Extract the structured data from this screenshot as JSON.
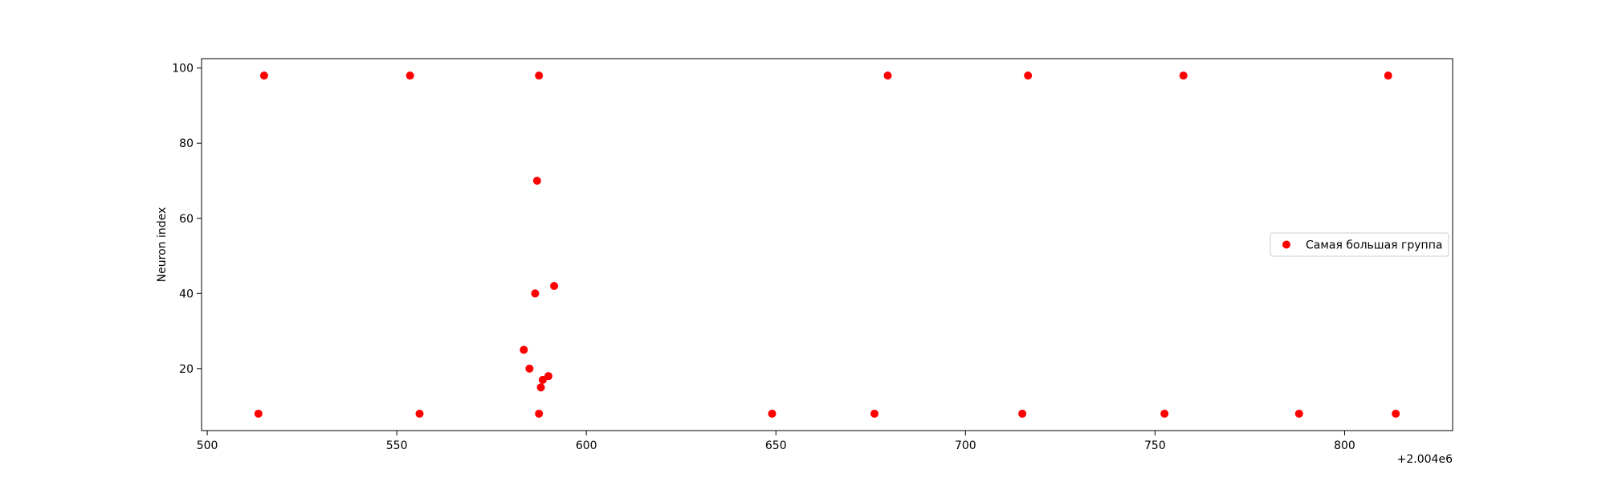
{
  "chart_data": {
    "type": "scatter",
    "title": "",
    "xlabel": "",
    "ylabel": "Neuron index",
    "x_offset_label": "+2.004e6",
    "xlim": [
      2004498.5,
      2004828.5
    ],
    "ylim": [
      3.5,
      102.5
    ],
    "x_ticks": [
      2004500,
      2004550,
      2004600,
      2004650,
      2004700,
      2004750,
      2004800
    ],
    "x_tick_labels": [
      "500",
      "550",
      "600",
      "650",
      "700",
      "750",
      "800"
    ],
    "y_ticks": [
      20,
      40,
      60,
      80,
      100
    ],
    "y_tick_labels": [
      "20",
      "40",
      "60",
      "80",
      "100"
    ],
    "grid": false,
    "legend_position": "center-right",
    "series": [
      {
        "name": "Самая большая группа",
        "color": "#ff0000",
        "points": [
          {
            "x": 2004515,
            "y": 98
          },
          {
            "x": 2004553.5,
            "y": 98
          },
          {
            "x": 2004587.5,
            "y": 98
          },
          {
            "x": 2004679.5,
            "y": 98
          },
          {
            "x": 2004716.5,
            "y": 98
          },
          {
            "x": 2004757.5,
            "y": 98
          },
          {
            "x": 2004811.5,
            "y": 98
          },
          {
            "x": 2004587,
            "y": 70
          },
          {
            "x": 2004591.5,
            "y": 42
          },
          {
            "x": 2004586.5,
            "y": 40
          },
          {
            "x": 2004583.5,
            "y": 25
          },
          {
            "x": 2004585,
            "y": 20
          },
          {
            "x": 2004590,
            "y": 18
          },
          {
            "x": 2004588.5,
            "y": 17
          },
          {
            "x": 2004588,
            "y": 15
          },
          {
            "x": 2004513.5,
            "y": 8
          },
          {
            "x": 2004556,
            "y": 8
          },
          {
            "x": 2004587.5,
            "y": 8
          },
          {
            "x": 2004649,
            "y": 8
          },
          {
            "x": 2004676,
            "y": 8
          },
          {
            "x": 2004715,
            "y": 8
          },
          {
            "x": 2004752.5,
            "y": 8
          },
          {
            "x": 2004788,
            "y": 8
          },
          {
            "x": 2004813.5,
            "y": 8
          }
        ]
      }
    ]
  }
}
